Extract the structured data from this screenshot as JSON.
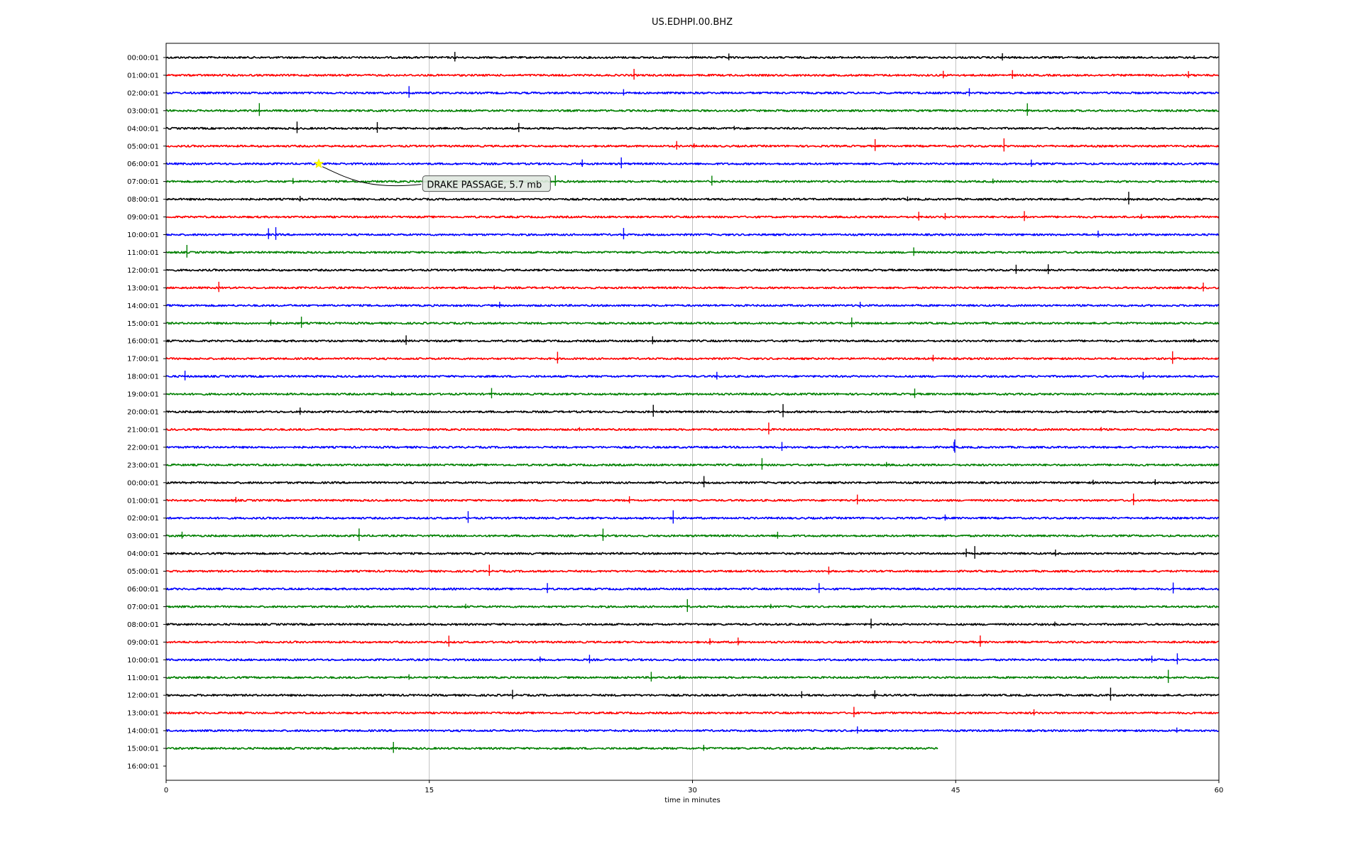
{
  "chart_data": {
    "type": "line",
    "title": "US.EDHPI.00.BHZ",
    "xlabel": "time in minutes",
    "ylabel": "",
    "xlim": [
      0,
      60
    ],
    "x_ticks": [
      0,
      15,
      30,
      45,
      60
    ],
    "grid": "vertical lines at x ticks",
    "line_colors": [
      "#000000",
      "#ff0000",
      "#0000ff",
      "#008000"
    ],
    "last_trace_end_minute": 44,
    "rows": [
      "00:00:01",
      "01:00:01",
      "02:00:01",
      "03:00:01",
      "04:00:01",
      "05:00:01",
      "06:00:01",
      "07:00:01",
      "08:00:01",
      "09:00:01",
      "10:00:01",
      "11:00:01",
      "12:00:01",
      "13:00:01",
      "14:00:01",
      "15:00:01",
      "16:00:01",
      "17:00:01",
      "18:00:01",
      "19:00:01",
      "20:00:01",
      "21:00:01",
      "22:00:01",
      "23:00:01",
      "00:00:01",
      "01:00:01",
      "02:00:01",
      "03:00:01",
      "04:00:01",
      "05:00:01",
      "06:00:01",
      "07:00:01",
      "08:00:01",
      "09:00:01",
      "10:00:01",
      "11:00:01",
      "12:00:01",
      "13:00:01",
      "14:00:01",
      "15:00:01",
      "16:00:01"
    ],
    "event_marker": {
      "row": 6,
      "minute": 8.7,
      "color": "#ffff00"
    },
    "annotation": {
      "text": "DRAKE PASSAGE, 5.7 mb",
      "row": 7,
      "minute": 14.7
    }
  }
}
